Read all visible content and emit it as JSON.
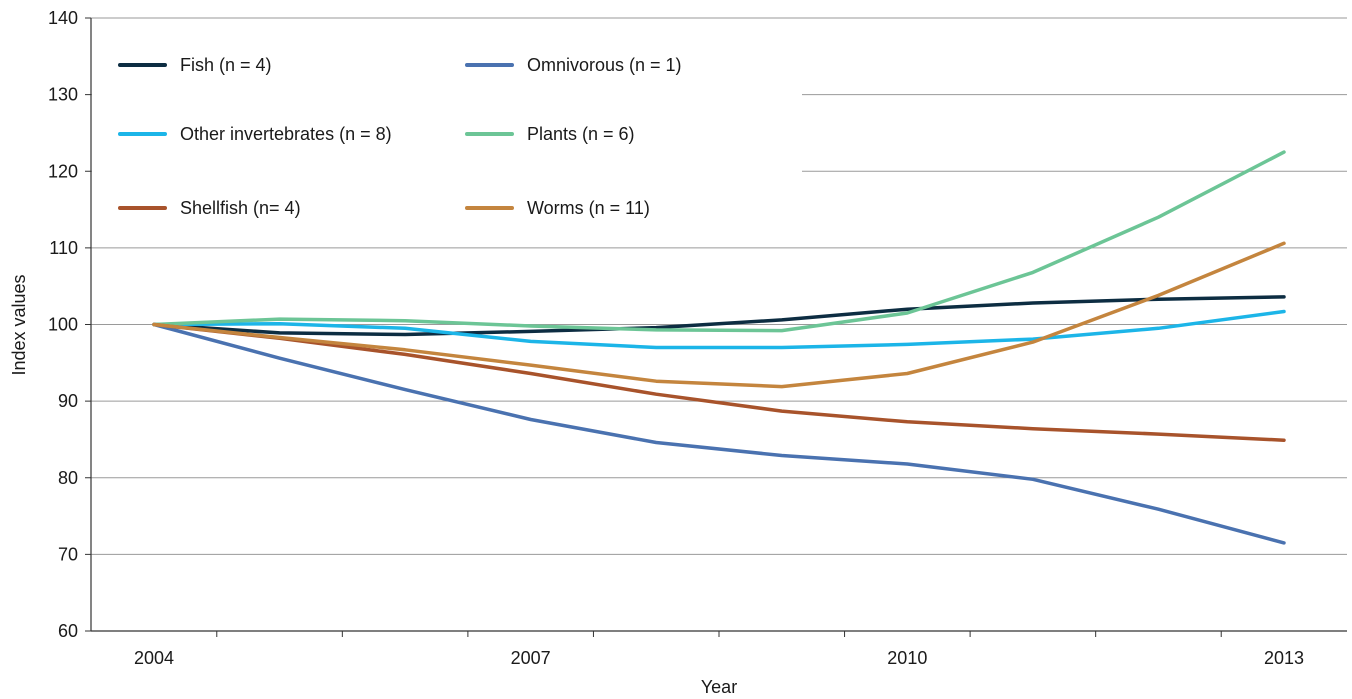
{
  "chart_data": {
    "type": "line",
    "title": "",
    "xlabel": "Year",
    "ylabel": "Index values",
    "xlim": [
      2004,
      2013
    ],
    "ylim": [
      60,
      140
    ],
    "x": [
      2004,
      2005,
      2006,
      2007,
      2008,
      2009,
      2010,
      2011,
      2012,
      2013
    ],
    "x_tick_labels": [
      "2004",
      "2007",
      "2010",
      "2013"
    ],
    "x_tick_label_values": [
      2004,
      2007,
      2010,
      2013
    ],
    "y_ticks": [
      60,
      70,
      80,
      90,
      100,
      110,
      120,
      130,
      140
    ],
    "grid": "horizontal",
    "legend_position": "top-left",
    "series": [
      {
        "name": "Fish (n = 4)",
        "color": "#0d2d42",
        "values": [
          100,
          98.9,
          98.7,
          99.1,
          99.6,
          100.6,
          102.0,
          102.8,
          103.3,
          103.6
        ]
      },
      {
        "name": "Omnivorous (n = 1)",
        "color": "#4a72b0",
        "values": [
          100,
          95.6,
          91.5,
          87.6,
          84.6,
          82.9,
          81.8,
          79.8,
          75.9,
          71.5
        ]
      },
      {
        "name": "Other invertebrates (n = 8)",
        "color": "#1cb5e8",
        "values": [
          100,
          100.1,
          99.5,
          97.8,
          97.0,
          97.0,
          97.4,
          98.1,
          99.5,
          101.7
        ]
      },
      {
        "name": "Plants (n = 6)",
        "color": "#6cc596",
        "values": [
          100,
          100.7,
          100.5,
          99.8,
          99.3,
          99.2,
          101.5,
          106.8,
          114.0,
          122.5
        ]
      },
      {
        "name": "Shellfish (n= 4)",
        "color": "#a8532b",
        "values": [
          100,
          98.2,
          96.1,
          93.6,
          90.9,
          88.7,
          87.3,
          86.4,
          85.7,
          84.9
        ]
      },
      {
        "name": "Worms (n = 11)",
        "color": "#c4853e",
        "values": [
          100,
          98.3,
          96.7,
          94.7,
          92.6,
          91.9,
          93.6,
          97.7,
          103.8,
          110.6
        ]
      }
    ]
  }
}
